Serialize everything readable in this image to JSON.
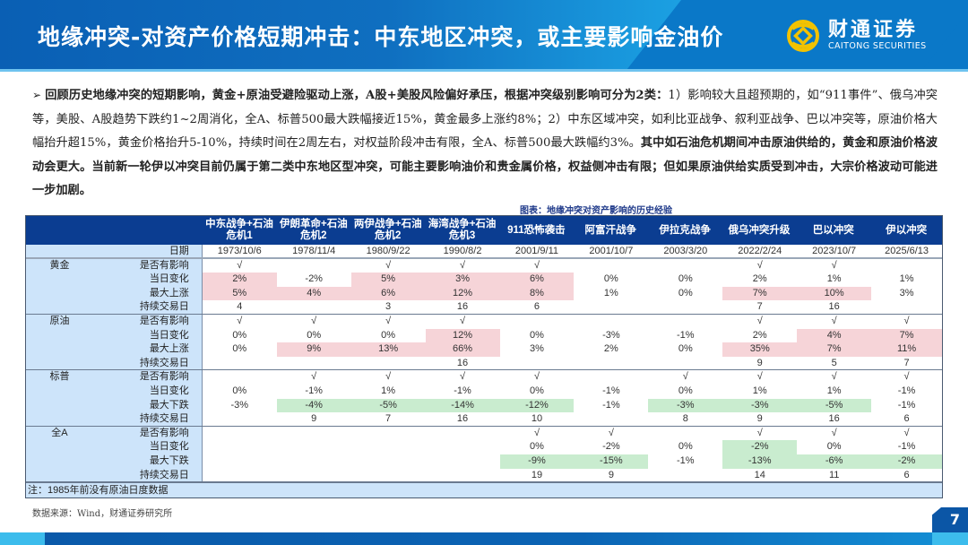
{
  "header": {
    "title": "地缘冲突-对资产价格短期冲击：中东地区冲突，或主要影响金油价",
    "logo_cn": "财通证券",
    "logo_en": "CAITONG SECURITIES",
    "logo_icon": "caitong-logo-icon"
  },
  "intro": {
    "bullet": "➢",
    "seg1_bold": "回顾历史地缘冲突的短期影响，黄金+原油受避险驱动上涨，A股+美股风险偏好承压，根据冲突级别影响可分为2类：",
    "seg2": "1）影响较大且超预期的，如“911事件”、俄乌冲突等，美股、A股趋势下跌约1~2周消化，全A、标普500最大跌幅接近15%，黄金最多上涨约8%；2）中东区域冲突，如利比亚战争、叙利亚战争、巴以冲突等，原油价格大幅抬升超15%，黄金价格抬升5-10%，持续时间在2周左右，对权益阶段冲击有限，全A、标普500最大跌幅约3%。",
    "seg3_bold": "其中如石油危机期间冲击原油供给的，黄金和原油价格波动会更大。当前新一轮伊以冲突目前仍属于第二类中东地区型冲突，可能主要影响油价和贵金属价格，权益侧冲击有限；但如果原油供给实质受到冲击，大宗价格波动可能进一步加剧。"
  },
  "table": {
    "caption": "图表：地缘冲突对资产影响的历史经验",
    "columns": [
      "中东战争+石油\n危机1",
      "伊朗革命+石油\n危机2",
      "两伊战争+石油\n危机2",
      "海湾战争+石油\n危机3",
      "911恐怖袭击",
      "阿富汗战争",
      "伊拉克战争",
      "俄乌冲突升级",
      "巴以冲突",
      "伊以冲突"
    ],
    "date_label": "日期",
    "dates": [
      "1973/10/6",
      "1978/11/4",
      "1980/9/22",
      "1990/8/2",
      "2001/9/11",
      "2001/10/7",
      "2003/3/20",
      "2022/2/24",
      "2023/10/7",
      "2025/6/13"
    ],
    "groups": [
      {
        "name": "黄金",
        "rows": [
          {
            "metric": "是否有影响",
            "values": [
              "√",
              "",
              "√",
              "√",
              "√",
              "",
              "",
              "√",
              "√",
              ""
            ],
            "hl": [
              "",
              "",
              "",
              "",
              "",
              "",
              "",
              "",
              "",
              ""
            ]
          },
          {
            "metric": "当日变化",
            "values": [
              "2%",
              "-2%",
              "5%",
              "3%",
              "6%",
              "0%",
              "0%",
              "2%",
              "1%",
              "1%"
            ],
            "hl": [
              "red",
              "",
              "red",
              "red",
              "red",
              "",
              "",
              "",
              "",
              ""
            ]
          },
          {
            "metric": "最大上涨",
            "values": [
              "5%",
              "4%",
              "6%",
              "12%",
              "8%",
              "1%",
              "0%",
              "7%",
              "10%",
              "3%"
            ],
            "hl": [
              "red",
              "red",
              "red",
              "red",
              "red",
              "",
              "",
              "red",
              "red",
              ""
            ]
          },
          {
            "metric": "持续交易日",
            "values": [
              "4",
              "",
              "3",
              "16",
              "6",
              "",
              "",
              "7",
              "16",
              ""
            ],
            "hl": [
              "",
              "",
              "",
              "",
              "",
              "",
              "",
              "",
              "",
              ""
            ]
          }
        ]
      },
      {
        "name": "原油",
        "rows": [
          {
            "metric": "是否有影响",
            "values": [
              "√",
              "√",
              "√",
              "√",
              "",
              "",
              "",
              "√",
              "√",
              "√"
            ],
            "hl": [
              "",
              "",
              "",
              "",
              "",
              "",
              "",
              "",
              "",
              ""
            ]
          },
          {
            "metric": "当日变化",
            "values": [
              "0%",
              "0%",
              "0%",
              "12%",
              "0%",
              "-3%",
              "-1%",
              "2%",
              "4%",
              "7%"
            ],
            "hl": [
              "",
              "",
              "",
              "red",
              "",
              "",
              "",
              "",
              "red",
              "red"
            ]
          },
          {
            "metric": "最大上涨",
            "values": [
              "0%",
              "9%",
              "13%",
              "66%",
              "3%",
              "2%",
              "0%",
              "35%",
              "7%",
              "11%"
            ],
            "hl": [
              "",
              "red",
              "red",
              "red",
              "",
              "",
              "",
              "red",
              "red",
              "red"
            ]
          },
          {
            "metric": "持续交易日",
            "values": [
              "",
              "",
              "",
              "16",
              "",
              "",
              "",
              "9",
              "5",
              "7"
            ],
            "hl": [
              "",
              "",
              "",
              "",
              "",
              "",
              "",
              "",
              "",
              ""
            ]
          }
        ]
      },
      {
        "name": "标普",
        "rows": [
          {
            "metric": "是否有影响",
            "values": [
              "",
              "√",
              "√",
              "√",
              "√",
              "",
              "√",
              "√",
              "√",
              "√"
            ],
            "hl": [
              "",
              "",
              "",
              "",
              "",
              "",
              "",
              "",
              "",
              ""
            ]
          },
          {
            "metric": "当日变化",
            "values": [
              "0%",
              "-1%",
              "1%",
              "-1%",
              "0%",
              "-1%",
              "0%",
              "1%",
              "1%",
              "-1%"
            ],
            "hl": [
              "",
              "",
              "",
              "",
              "",
              "",
              "",
              "",
              "",
              ""
            ]
          },
          {
            "metric": "最大下跌",
            "values": [
              "-3%",
              "-4%",
              "-5%",
              "-14%",
              "-12%",
              "-1%",
              "-3%",
              "-3%",
              "-5%",
              "-1%"
            ],
            "hl": [
              "",
              "green",
              "green",
              "green",
              "green",
              "",
              "green",
              "green",
              "green",
              ""
            ]
          },
          {
            "metric": "持续交易日",
            "values": [
              "",
              "9",
              "7",
              "16",
              "10",
              "",
              "8",
              "9",
              "16",
              "6"
            ],
            "hl": [
              "",
              "",
              "",
              "",
              "",
              "",
              "",
              "",
              "",
              ""
            ]
          }
        ]
      },
      {
        "name": "全A",
        "rows": [
          {
            "metric": "是否有影响",
            "values": [
              "",
              "",
              "",
              "",
              "√",
              "√",
              "",
              "√",
              "√",
              "√"
            ],
            "hl": [
              "",
              "",
              "",
              "",
              "",
              "",
              "",
              "",
              "",
              ""
            ]
          },
          {
            "metric": "当日变化",
            "values": [
              "",
              "",
              "",
              "",
              "0%",
              "-2%",
              "0%",
              "-2%",
              "0%",
              "-1%"
            ],
            "hl": [
              "",
              "",
              "",
              "",
              "",
              "",
              "",
              "green",
              "",
              ""
            ]
          },
          {
            "metric": "最大下跌",
            "values": [
              "",
              "",
              "",
              "",
              "-9%",
              "-15%",
              "-1%",
              "-13%",
              "-6%",
              "-2%"
            ],
            "hl": [
              "",
              "",
              "",
              "",
              "green",
              "green",
              "",
              "green",
              "green",
              "green"
            ]
          },
          {
            "metric": "持续交易日",
            "values": [
              "",
              "",
              "",
              "",
              "19",
              "9",
              "",
              "14",
              "11",
              "6"
            ],
            "hl": [
              "",
              "",
              "",
              "",
              "",
              "",
              "",
              "",
              "",
              ""
            ]
          }
        ]
      }
    ],
    "note": "注：1985年前没有原油日度数据"
  },
  "source": "数据来源：Wind，财通证券研究所",
  "page_number": "7",
  "colors": {
    "header_blue": "#0a5fb4",
    "table_header": "#0b3d91",
    "label_bg": "#cde4fa",
    "highlight_red": "#f6d4d8",
    "highlight_green": "#c9eccf",
    "logo_gold": "#f2c200"
  }
}
